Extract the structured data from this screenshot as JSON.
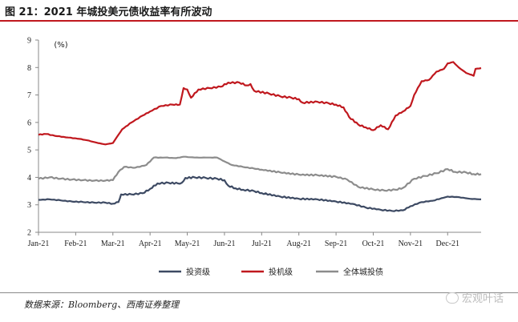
{
  "title": "图 21：2021 年城投美元债收益率有所波动",
  "source": "数据来源：Bloomberg、西南证券整理",
  "watermark": "宏观叶话",
  "chart_data": {
    "type": "line",
    "unit_label": "(%)",
    "ylim": [
      2,
      9
    ],
    "yticks": [
      "2",
      "3",
      "4",
      "5",
      "6",
      "7",
      "8",
      "9"
    ],
    "xticks": [
      "Jan-21",
      "Feb-21",
      "Mar-21",
      "Apr-21",
      "May-21",
      "Jun-21",
      "Jul-21",
      "Aug-21",
      "Sep-21",
      "Oct-21",
      "Nov-21",
      "Dec-21"
    ],
    "xlim": [
      0,
      11.9
    ],
    "grid": false,
    "legend_position": "bottom",
    "series": [
      {
        "name": "投资级",
        "color": "#3d4a63",
        "points": [
          [
            0,
            3.18
          ],
          [
            0.3,
            3.2
          ],
          [
            0.6,
            3.16
          ],
          [
            0.9,
            3.12
          ],
          [
            1.2,
            3.1
          ],
          [
            1.5,
            3.08
          ],
          [
            1.8,
            3.08
          ],
          [
            2.0,
            3.04
          ],
          [
            2.15,
            3.1
          ],
          [
            2.22,
            3.38
          ],
          [
            2.5,
            3.38
          ],
          [
            2.8,
            3.42
          ],
          [
            3.0,
            3.58
          ],
          [
            3.2,
            3.78
          ],
          [
            3.5,
            3.8
          ],
          [
            3.75,
            3.78
          ],
          [
            3.85,
            3.8
          ],
          [
            3.95,
            3.98
          ],
          [
            4.2,
            4.0
          ],
          [
            4.5,
            3.98
          ],
          [
            4.8,
            3.95
          ],
          [
            5.0,
            3.9
          ],
          [
            5.1,
            3.7
          ],
          [
            5.3,
            3.6
          ],
          [
            5.5,
            3.55
          ],
          [
            5.8,
            3.5
          ],
          [
            6.0,
            3.43
          ],
          [
            6.5,
            3.3
          ],
          [
            7.0,
            3.22
          ],
          [
            7.5,
            3.2
          ],
          [
            8.0,
            3.12
          ],
          [
            8.5,
            3.02
          ],
          [
            8.8,
            2.9
          ],
          [
            9.2,
            2.82
          ],
          [
            9.5,
            2.78
          ],
          [
            9.8,
            2.8
          ],
          [
            10.0,
            2.95
          ],
          [
            10.3,
            3.1
          ],
          [
            10.6,
            3.15
          ],
          [
            11.0,
            3.3
          ],
          [
            11.3,
            3.28
          ],
          [
            11.6,
            3.22
          ],
          [
            11.9,
            3.2
          ]
        ]
      },
      {
        "name": "投机级",
        "color": "#c0181e",
        "points": [
          [
            0,
            5.55
          ],
          [
            0.2,
            5.58
          ],
          [
            0.5,
            5.5
          ],
          [
            0.8,
            5.45
          ],
          [
            1.1,
            5.4
          ],
          [
            1.3,
            5.35
          ],
          [
            1.6,
            5.25
          ],
          [
            1.8,
            5.2
          ],
          [
            2.0,
            5.25
          ],
          [
            2.15,
            5.55
          ],
          [
            2.25,
            5.75
          ],
          [
            2.5,
            6.0
          ],
          [
            2.8,
            6.25
          ],
          [
            3.0,
            6.4
          ],
          [
            3.3,
            6.6
          ],
          [
            3.6,
            6.65
          ],
          [
            3.8,
            6.65
          ],
          [
            3.9,
            7.25
          ],
          [
            4.0,
            7.2
          ],
          [
            4.1,
            6.9
          ],
          [
            4.3,
            7.2
          ],
          [
            4.6,
            7.25
          ],
          [
            4.9,
            7.3
          ],
          [
            5.1,
            7.45
          ],
          [
            5.4,
            7.45
          ],
          [
            5.6,
            7.35
          ],
          [
            5.7,
            7.4
          ],
          [
            5.8,
            7.15
          ],
          [
            6.2,
            7.05
          ],
          [
            6.5,
            6.95
          ],
          [
            6.8,
            6.9
          ],
          [
            7.0,
            6.85
          ],
          [
            7.1,
            6.72
          ],
          [
            7.5,
            6.75
          ],
          [
            7.8,
            6.7
          ],
          [
            8.0,
            6.65
          ],
          [
            8.2,
            6.55
          ],
          [
            8.35,
            6.2
          ],
          [
            8.6,
            5.92
          ],
          [
            8.8,
            5.82
          ],
          [
            9.0,
            5.72
          ],
          [
            9.2,
            5.9
          ],
          [
            9.4,
            5.75
          ],
          [
            9.6,
            6.25
          ],
          [
            9.8,
            6.4
          ],
          [
            10.0,
            6.6
          ],
          [
            10.1,
            7.0
          ],
          [
            10.3,
            7.5
          ],
          [
            10.5,
            7.55
          ],
          [
            10.7,
            7.85
          ],
          [
            10.9,
            7.95
          ],
          [
            11.0,
            8.15
          ],
          [
            11.15,
            8.2
          ],
          [
            11.3,
            8.0
          ],
          [
            11.5,
            7.8
          ],
          [
            11.7,
            7.7
          ],
          [
            11.75,
            7.95
          ],
          [
            11.9,
            7.98
          ]
        ]
      },
      {
        "name": "全体城投债",
        "color": "#8c8c8c",
        "points": [
          [
            0,
            3.95
          ],
          [
            0.3,
            4.0
          ],
          [
            0.6,
            3.95
          ],
          [
            0.9,
            3.92
          ],
          [
            1.2,
            3.9
          ],
          [
            1.5,
            3.88
          ],
          [
            1.8,
            3.88
          ],
          [
            2.0,
            3.9
          ],
          [
            2.15,
            4.2
          ],
          [
            2.3,
            4.38
          ],
          [
            2.6,
            4.35
          ],
          [
            2.9,
            4.45
          ],
          [
            3.1,
            4.72
          ],
          [
            3.4,
            4.72
          ],
          [
            3.7,
            4.7
          ],
          [
            3.9,
            4.75
          ],
          [
            4.2,
            4.72
          ],
          [
            4.5,
            4.72
          ],
          [
            4.8,
            4.72
          ],
          [
            5.0,
            4.58
          ],
          [
            5.2,
            4.45
          ],
          [
            5.5,
            4.38
          ],
          [
            5.8,
            4.32
          ],
          [
            6.0,
            4.28
          ],
          [
            6.5,
            4.18
          ],
          [
            7.0,
            4.1
          ],
          [
            7.5,
            4.08
          ],
          [
            8.0,
            4.02
          ],
          [
            8.3,
            3.92
          ],
          [
            8.6,
            3.65
          ],
          [
            9.0,
            3.56
          ],
          [
            9.3,
            3.52
          ],
          [
            9.6,
            3.55
          ],
          [
            9.8,
            3.62
          ],
          [
            10.1,
            3.95
          ],
          [
            10.4,
            4.05
          ],
          [
            10.7,
            4.15
          ],
          [
            11.0,
            4.3
          ],
          [
            11.2,
            4.2
          ],
          [
            11.5,
            4.18
          ],
          [
            11.7,
            4.12
          ],
          [
            11.9,
            4.12
          ]
        ]
      }
    ]
  }
}
